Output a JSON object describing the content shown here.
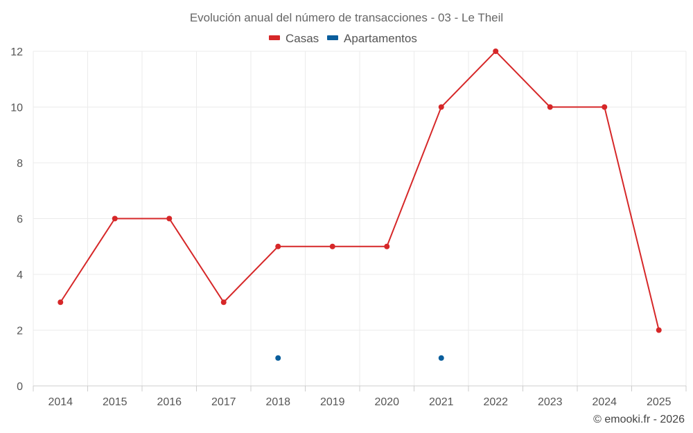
{
  "chart_data": {
    "type": "line",
    "title": "Evolución anual del número de transacciones - 03 - Le Theil",
    "categories": [
      "2014",
      "2015",
      "2016",
      "2017",
      "2018",
      "2019",
      "2020",
      "2021",
      "2022",
      "2023",
      "2024",
      "2025"
    ],
    "series": [
      {
        "name": "Casas",
        "color": "#d62728",
        "values": [
          3,
          6,
          6,
          3,
          5,
          5,
          5,
          10,
          12,
          10,
          10,
          2
        ]
      },
      {
        "name": "Apartamentos",
        "color": "#0a5e9c",
        "values": [
          null,
          null,
          null,
          null,
          1,
          null,
          null,
          1,
          null,
          null,
          null,
          null
        ]
      }
    ],
    "y_ticks": [
      0,
      2,
      4,
      6,
      8,
      10,
      12
    ],
    "ylim": [
      0,
      12
    ],
    "legend_position": "top-center",
    "grid": true,
    "credit": "© emooki.fr - 2026"
  }
}
